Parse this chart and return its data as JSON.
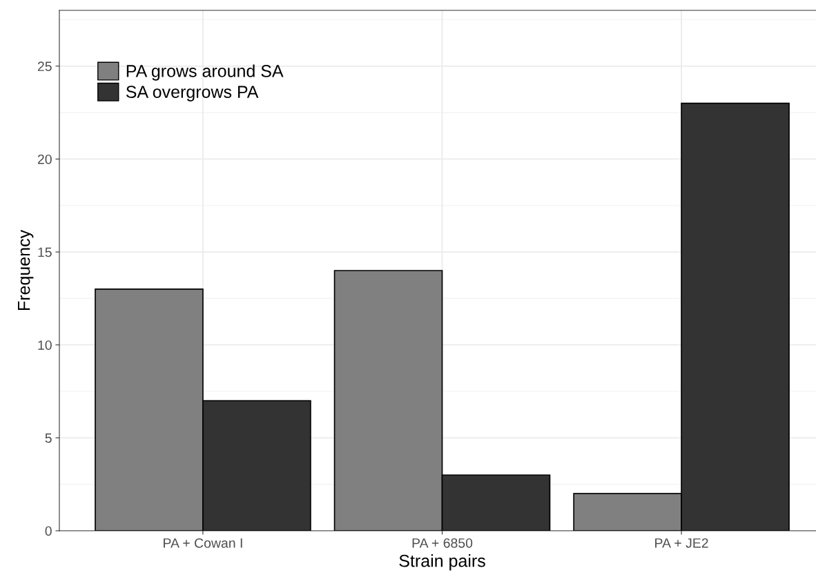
{
  "chart_data": {
    "type": "bar",
    "xlabel": "Strain pairs",
    "ylabel": "Frequency",
    "categories": [
      "PA + Cowan I",
      "PA + 6850",
      "PA + JE2"
    ],
    "series": [
      {
        "name": "PA grows around SA",
        "color": "#808080",
        "values": [
          13,
          14,
          2
        ]
      },
      {
        "name": "SA overgrows PA",
        "color": "#333333",
        "values": [
          7,
          3,
          23
        ]
      }
    ],
    "ylim": [
      0,
      28
    ],
    "yticks": [
      0,
      5,
      10,
      15,
      20,
      25
    ],
    "grid": true,
    "legend": "top left"
  }
}
